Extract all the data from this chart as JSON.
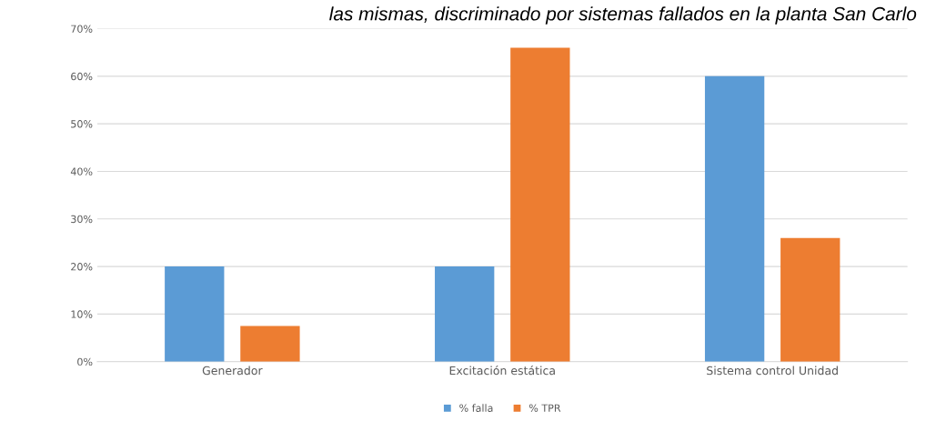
{
  "chart_data": {
    "type": "bar",
    "title": "las mismas, discriminado por sistemas fallados en la planta San Carlo",
    "categories": [
      "Generador",
      "Excitación estática",
      "Sistema control Unidad"
    ],
    "series": [
      {
        "name": "% falla",
        "color": "#5b9bd5",
        "values": [
          20,
          20,
          60
        ]
      },
      {
        "name": "% TPR",
        "color": "#ed7d31",
        "values": [
          7.5,
          66,
          26
        ]
      }
    ],
    "ylim": [
      0,
      70
    ],
    "yticks": [
      {
        "value": 0,
        "label": "0%"
      },
      {
        "value": 10,
        "label": "10%"
      },
      {
        "value": 20,
        "label": "20%"
      },
      {
        "value": 30,
        "label": "30%"
      },
      {
        "value": 40,
        "label": "40%"
      },
      {
        "value": 50,
        "label": "50%"
      },
      {
        "value": 60,
        "label": "60%"
      },
      {
        "value": 70,
        "label": "70%"
      }
    ],
    "grid": "y",
    "legend": "bottom"
  }
}
